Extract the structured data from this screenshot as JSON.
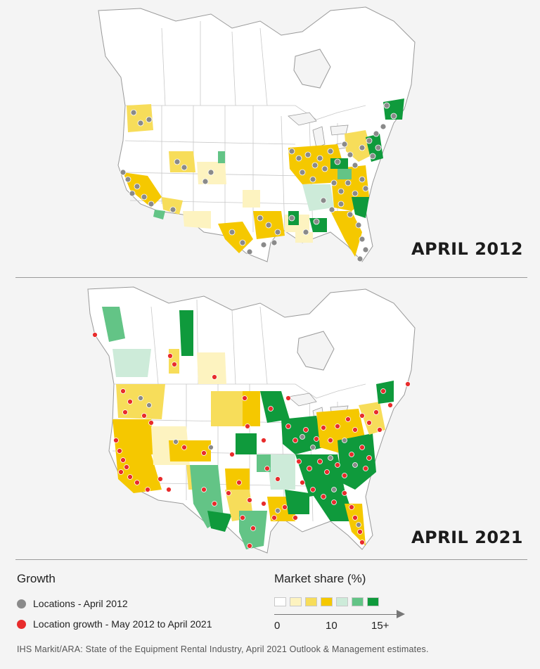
{
  "maps": [
    {
      "id": "2012",
      "title": "APRIL 2012"
    },
    {
      "id": "2021",
      "title": "APRIL 2021"
    }
  ],
  "legend": {
    "growth_heading": "Growth",
    "items": [
      {
        "label": "Locations - April 2012",
        "color": "#8a8a8a"
      },
      {
        "label": "Location growth - May 2012 to April 2021",
        "color": "#e82c2c"
      }
    ],
    "market_share_heading": "Market share (%)",
    "scale_colors": [
      "#ffffff",
      "#fdf3c0",
      "#f7dd5a",
      "#f5c800",
      "#cdebd9",
      "#63c486",
      "#0f9a3c"
    ],
    "scale_ticks": [
      "0",
      "10",
      "15+"
    ]
  },
  "source": "IHS Markit/ARA: State of the Equipment Rental Industry, April 2021 Outlook & Management estimates."
}
